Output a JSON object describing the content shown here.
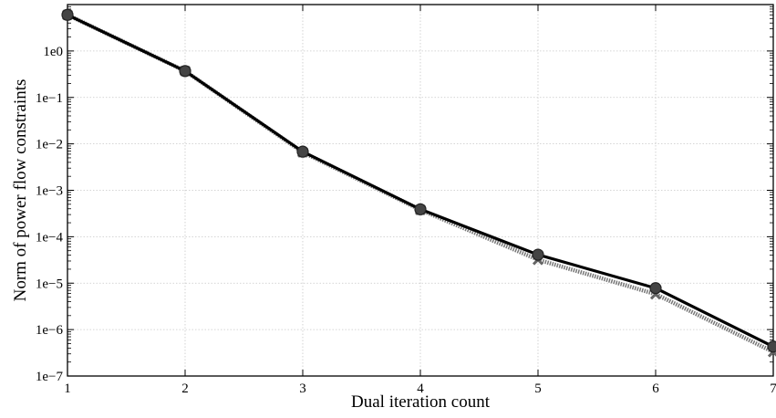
{
  "chart_data": {
    "type": "line",
    "title": "",
    "xlabel": "Dual iteration count",
    "ylabel": "Norm of power flow constraints",
    "yscale": "log",
    "xlim": [
      1,
      7
    ],
    "ylim": [
      1e-07,
      10
    ],
    "grid": true,
    "x_ticks": [
      1,
      2,
      3,
      4,
      5,
      6,
      7
    ],
    "x_tick_labels": [
      "1",
      "2",
      "3",
      "4",
      "5",
      "6",
      "7"
    ],
    "y_ticks": [
      1e-07,
      1e-06,
      1e-05,
      0.0001,
      0.001,
      0.01,
      0.1,
      1
    ],
    "y_tick_labels": [
      "1e−7",
      "1e−6",
      "1e−5",
      "1e−4",
      "1e−3",
      "1e−2",
      "1e−1",
      "1e0"
    ],
    "x": [
      1,
      2,
      3,
      4,
      5,
      6,
      7
    ],
    "series": [
      {
        "style": "solid",
        "marker": "circle",
        "color": "#000000",
        "markerColor": "#444444",
        "values": [
          6.0,
          0.37,
          0.0068,
          0.00039,
          4.1e-05,
          7.8e-06,
          4.3e-07
        ]
      },
      {
        "style": "dotted",
        "marker": "x",
        "color": "#777777",
        "markerColor": "#666666",
        "values": [
          6.0,
          0.37,
          0.0066,
          0.00038,
          3.2e-05,
          5.8e-06,
          3.3e-07
        ]
      }
    ]
  }
}
